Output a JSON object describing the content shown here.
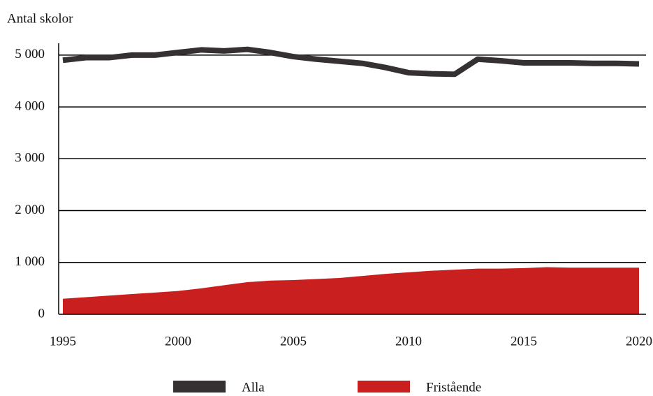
{
  "chart_data": {
    "type": "line_area",
    "ylabel": "Antal skolor",
    "x": [
      1995,
      1996,
      1997,
      1998,
      1999,
      2000,
      2001,
      2002,
      2003,
      2004,
      2005,
      2006,
      2007,
      2008,
      2009,
      2010,
      2011,
      2012,
      2013,
      2014,
      2015,
      2016,
      2017,
      2018,
      2019,
      2020
    ],
    "series": [
      {
        "name": "Alla",
        "color": "#353132",
        "kind": "line",
        "values": [
          4900,
          4950,
          4950,
          5000,
          5000,
          5050,
          5100,
          5080,
          5110,
          5050,
          4970,
          4920,
          4880,
          4840,
          4760,
          4660,
          4640,
          4630,
          4920,
          4890,
          4850,
          4850,
          4850,
          4840,
          4840,
          4830
        ]
      },
      {
        "name": "Fristående",
        "color": "#c91f1f",
        "kind": "area",
        "values": [
          300,
          330,
          360,
          390,
          420,
          450,
          500,
          560,
          620,
          650,
          660,
          680,
          700,
          740,
          780,
          810,
          840,
          860,
          880,
          880,
          890,
          910,
          900,
          900,
          900,
          900
        ]
      }
    ],
    "xlim": [
      1995,
      2020
    ],
    "xticks": [
      1995,
      2000,
      2005,
      2010,
      2015,
      2020
    ],
    "ylim": [
      0,
      5200
    ],
    "yticks": [
      0,
      {
        "value": 1000,
        "label": "1 000"
      },
      {
        "value": 2000,
        "label": "2 000"
      },
      {
        "value": 3000,
        "label": "3 000"
      },
      {
        "value": 4000,
        "label": "4 000"
      },
      {
        "value": 5000,
        "label": "5 000"
      }
    ],
    "grid": true,
    "legend": "bottom"
  }
}
